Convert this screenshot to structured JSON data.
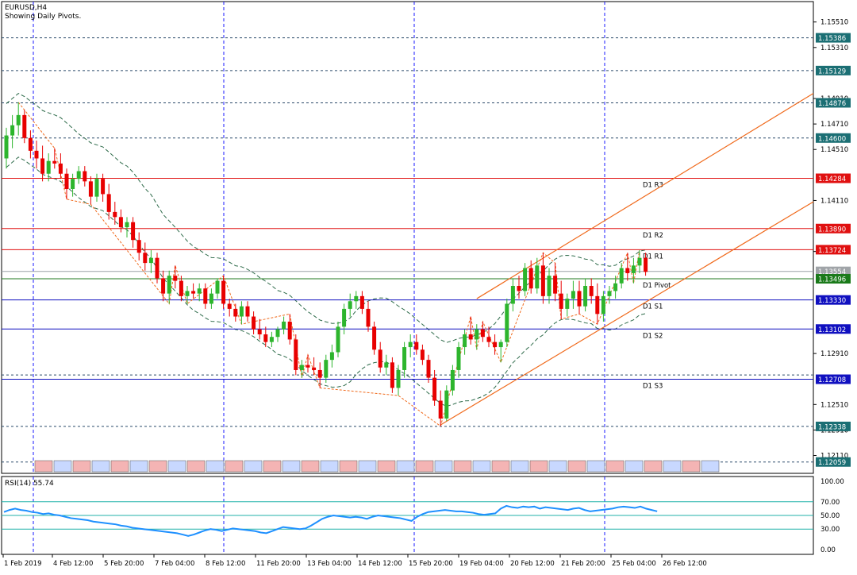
{
  "header": {
    "symbol": "EURUSD,H4",
    "subtitle": "Showing Daily Pivots."
  },
  "colors": {
    "bull": "#2db52d",
    "bear": "#e80000",
    "pivot_resistance": "#e01010",
    "pivot_support": "#1010c0",
    "pivot_center": "#207a20",
    "channel": "#f06a1c",
    "zigzag": "#f06a1c",
    "envelope": "#2e6b4a",
    "rsi_line": "#1e90ff",
    "rsi_levels": "#20b2aa",
    "grid": "#1a1aff",
    "tag_fill": "#a8e0f0"
  },
  "chart_data": [
    {
      "type": "candlestick",
      "panel": "main",
      "symbol": "EURUSD",
      "timeframe": "H4",
      "y_axis_ticks": [
        "1.15510",
        "1.15310",
        "1.14910",
        "1.14710",
        "1.14510",
        "1.14110",
        "1.13710",
        "1.12910",
        "1.12510",
        "1.12310",
        "1.12110"
      ],
      "ylim": [
        1.1197,
        1.1567
      ],
      "x_axis_ticks": [
        "1 Feb 2019",
        "4 Feb 12:00",
        "5 Feb 20:00",
        "7 Feb 04:00",
        "8 Feb 12:00",
        "11 Feb 20:00",
        "13 Feb 04:00",
        "14 Feb 12:00",
        "15 Feb 20:00",
        "19 Feb 04:00",
        "20 Feb 12:00",
        "21 Feb 20:00",
        "25 Feb 04:00",
        "26 Feb 12:00"
      ],
      "price_tags": [
        {
          "value": "1.15386",
          "style": "dotted"
        },
        {
          "value": "1.15129",
          "style": "dotted"
        },
        {
          "value": "1.14876",
          "style": "dotted"
        },
        {
          "value": "1.14600",
          "style": "dotted"
        },
        {
          "value": "1.14284",
          "style": "resistance"
        },
        {
          "value": "1.13890",
          "style": "resistance"
        },
        {
          "value": "1.13724",
          "style": "resistance"
        },
        {
          "value": "1.13554",
          "style": "current"
        },
        {
          "value": "1.13496",
          "style": "pivot"
        },
        {
          "value": "1.13330",
          "style": "support"
        },
        {
          "value": "1.13102",
          "style": "support"
        },
        {
          "value": "1.12708",
          "style": "support"
        },
        {
          "value": "1.12338",
          "style": "dotted"
        },
        {
          "value": "1.12059",
          "style": "dotted"
        }
      ],
      "pivots": [
        {
          "label": "D1 R3",
          "value": 1.14284
        },
        {
          "label": "D1 R2",
          "value": 1.1389
        },
        {
          "label": "D1 R1",
          "value": 1.13724
        },
        {
          "label": "D1 Pivot",
          "value": 1.13496
        },
        {
          "label": "D1 S1",
          "value": 1.1333
        },
        {
          "label": "D1 S2",
          "value": 1.13102
        },
        {
          "label": "D1 S3",
          "value": 1.12708
        }
      ],
      "extra_levels": [
        1.12742
      ],
      "candles": [
        [
          1.1444,
          1.1468,
          1.1436,
          1.1462
        ],
        [
          1.1462,
          1.1478,
          1.1452,
          1.147
        ],
        [
          1.147,
          1.1488,
          1.1462,
          1.1478
        ],
        [
          1.1478,
          1.1482,
          1.1456,
          1.146
        ],
        [
          1.146,
          1.1466,
          1.1444,
          1.145
        ],
        [
          1.145,
          1.1458,
          1.1436,
          1.1444
        ],
        [
          1.1444,
          1.1454,
          1.1426,
          1.1432
        ],
        [
          1.1432,
          1.1448,
          1.1426,
          1.1442
        ],
        [
          1.1442,
          1.1452,
          1.1436,
          1.144
        ],
        [
          1.144,
          1.1448,
          1.1428,
          1.1432
        ],
        [
          1.1432,
          1.1436,
          1.1412,
          1.142
        ],
        [
          1.142,
          1.1432,
          1.1414,
          1.1428
        ],
        [
          1.1428,
          1.1438,
          1.1424,
          1.1434
        ],
        [
          1.1434,
          1.1438,
          1.1422,
          1.1426
        ],
        [
          1.1426,
          1.143,
          1.1408,
          1.1414
        ],
        [
          1.1414,
          1.1432,
          1.141,
          1.1428
        ],
        [
          1.1428,
          1.1432,
          1.141,
          1.1416
        ],
        [
          1.1416,
          1.1424,
          1.1396,
          1.1402
        ],
        [
          1.1402,
          1.141,
          1.1392,
          1.1398
        ],
        [
          1.1398,
          1.1404,
          1.1386,
          1.139
        ],
        [
          1.139,
          1.1398,
          1.1382,
          1.1394
        ],
        [
          1.1394,
          1.1398,
          1.1374,
          1.138
        ],
        [
          1.138,
          1.1386,
          1.1364,
          1.137
        ],
        [
          1.137,
          1.1378,
          1.1356,
          1.1362
        ],
        [
          1.1362,
          1.1372,
          1.1354,
          1.1366
        ],
        [
          1.1366,
          1.137,
          1.1346,
          1.135
        ],
        [
          1.135,
          1.1356,
          1.1332,
          1.1338
        ],
        [
          1.1338,
          1.1356,
          1.133,
          1.1352
        ],
        [
          1.1352,
          1.136,
          1.1342,
          1.1348
        ],
        [
          1.1348,
          1.1352,
          1.1332,
          1.1336
        ],
        [
          1.1336,
          1.1344,
          1.133,
          1.134
        ],
        [
          1.134,
          1.1346,
          1.1334,
          1.1338
        ],
        [
          1.1338,
          1.1346,
          1.1332,
          1.1342
        ],
        [
          1.1342,
          1.1346,
          1.1326,
          1.133
        ],
        [
          1.133,
          1.1342,
          1.1326,
          1.1338
        ],
        [
          1.1338,
          1.135,
          1.1334,
          1.1348
        ],
        [
          1.1348,
          1.1352,
          1.1326,
          1.133
        ],
        [
          1.133,
          1.1334,
          1.132,
          1.1326
        ],
        [
          1.1326,
          1.133,
          1.1316,
          1.132
        ],
        [
          1.132,
          1.1332,
          1.1314,
          1.1328
        ],
        [
          1.1328,
          1.1332,
          1.1316,
          1.132
        ],
        [
          1.132,
          1.1324,
          1.1306,
          1.131
        ],
        [
          1.131,
          1.1318,
          1.1302,
          1.1306
        ],
        [
          1.1306,
          1.1312,
          1.1296,
          1.13
        ],
        [
          1.13,
          1.1308,
          1.1296,
          1.1304
        ],
        [
          1.1304,
          1.1312,
          1.13,
          1.131
        ],
        [
          1.131,
          1.132,
          1.1306,
          1.1316
        ],
        [
          1.1316,
          1.1322,
          1.1298,
          1.1302
        ],
        [
          1.1302,
          1.1306,
          1.1274,
          1.1278
        ],
        [
          1.1278,
          1.1286,
          1.1272,
          1.1282
        ],
        [
          1.1282,
          1.129,
          1.1276,
          1.128
        ],
        [
          1.128,
          1.1288,
          1.1274,
          1.1278
        ],
        [
          1.1278,
          1.1284,
          1.1264,
          1.1272
        ],
        [
          1.1272,
          1.129,
          1.1268,
          1.1286
        ],
        [
          1.1286,
          1.1298,
          1.128,
          1.1292
        ],
        [
          1.1292,
          1.1316,
          1.1288,
          1.1312
        ],
        [
          1.1312,
          1.133,
          1.1306,
          1.1326
        ],
        [
          1.1326,
          1.1338,
          1.132,
          1.1332
        ],
        [
          1.1332,
          1.134,
          1.1326,
          1.1336
        ],
        [
          1.1336,
          1.134,
          1.1322,
          1.1326
        ],
        [
          1.1326,
          1.1332,
          1.1308,
          1.1312
        ],
        [
          1.1312,
          1.1316,
          1.129,
          1.1294
        ],
        [
          1.1294,
          1.13,
          1.1276,
          1.128
        ],
        [
          1.128,
          1.129,
          1.1274,
          1.1284
        ],
        [
          1.1284,
          1.1288,
          1.126,
          1.1264
        ],
        [
          1.1264,
          1.1282,
          1.1258,
          1.1278
        ],
        [
          1.1278,
          1.13,
          1.1272,
          1.1296
        ],
        [
          1.1296,
          1.1306,
          1.1288,
          1.13
        ],
        [
          1.13,
          1.1306,
          1.129,
          1.1294
        ],
        [
          1.1294,
          1.1298,
          1.1282,
          1.1286
        ],
        [
          1.1286,
          1.129,
          1.1268,
          1.1272
        ],
        [
          1.1272,
          1.1278,
          1.125,
          1.1254
        ],
        [
          1.1254,
          1.1262,
          1.1234,
          1.124
        ],
        [
          1.124,
          1.1266,
          1.1238,
          1.1262
        ],
        [
          1.1262,
          1.1282,
          1.1258,
          1.1278
        ],
        [
          1.1278,
          1.13,
          1.1272,
          1.1296
        ],
        [
          1.1296,
          1.131,
          1.129,
          1.1306
        ],
        [
          1.1306,
          1.132,
          1.1298,
          1.1302
        ],
        [
          1.1302,
          1.1314,
          1.1294,
          1.131
        ],
        [
          1.131,
          1.1316,
          1.13,
          1.1304
        ],
        [
          1.1304,
          1.1312,
          1.1296,
          1.13
        ],
        [
          1.13,
          1.1306,
          1.129,
          1.1296
        ],
        [
          1.1296,
          1.1302,
          1.1284,
          1.13
        ],
        [
          1.13,
          1.1334,
          1.1296,
          1.133
        ],
        [
          1.133,
          1.135,
          1.1324,
          1.1344
        ],
        [
          1.1344,
          1.1352,
          1.1334,
          1.134
        ],
        [
          1.134,
          1.1362,
          1.1336,
          1.1358
        ],
        [
          1.1358,
          1.1364,
          1.1338,
          1.1342
        ],
        [
          1.1342,
          1.1366,
          1.1338,
          1.136
        ],
        [
          1.136,
          1.137,
          1.133,
          1.1336
        ],
        [
          1.1336,
          1.1358,
          1.133,
          1.1352
        ],
        [
          1.1352,
          1.1362,
          1.1332,
          1.1338
        ],
        [
          1.1338,
          1.1348,
          1.1318,
          1.1326
        ],
        [
          1.1326,
          1.1338,
          1.132,
          1.1334
        ],
        [
          1.1334,
          1.1348,
          1.1326,
          1.134
        ],
        [
          1.134,
          1.1348,
          1.1322,
          1.1328
        ],
        [
          1.1328,
          1.135,
          1.1324,
          1.1344
        ],
        [
          1.1344,
          1.135,
          1.133,
          1.1336
        ],
        [
          1.1336,
          1.1346,
          1.1314,
          1.1322
        ],
        [
          1.1322,
          1.134,
          1.1316,
          1.1336
        ],
        [
          1.1336,
          1.1344,
          1.133,
          1.134
        ],
        [
          1.134,
          1.1352,
          1.1334,
          1.1346
        ],
        [
          1.1346,
          1.1362,
          1.1342,
          1.1358
        ],
        [
          1.1358,
          1.137,
          1.1348,
          1.1354
        ],
        [
          1.1354,
          1.1366,
          1.1346,
          1.136
        ],
        [
          1.136,
          1.1372,
          1.1354,
          1.1366
        ],
        [
          1.1366,
          1.137,
          1.1352,
          1.1355
        ]
      ]
    },
    {
      "type": "line",
      "panel": "rsi",
      "title": "RSI(14) 55.74",
      "ylim": [
        0,
        100
      ],
      "y_axis_ticks": [
        "100.00",
        "70.00",
        "50.00",
        "30.00",
        "0.00"
      ],
      "levels": [
        70,
        50,
        30
      ],
      "series": [
        {
          "values": [
            55,
            58,
            60,
            58,
            57,
            55,
            54,
            52,
            53,
            51,
            50,
            48,
            46,
            45,
            44,
            43,
            41,
            40,
            39,
            38,
            37,
            35,
            34,
            32,
            31,
            30,
            29,
            28,
            27,
            26,
            25,
            24,
            22,
            20,
            22,
            25,
            28,
            30,
            29,
            27,
            29,
            31,
            30,
            29,
            28,
            27,
            25,
            24,
            27,
            30,
            33,
            32,
            31,
            30,
            31,
            35,
            40,
            45,
            48,
            50,
            49,
            48,
            47,
            48,
            47,
            45,
            48,
            50,
            49,
            48,
            47,
            46,
            44,
            42,
            48,
            52,
            55,
            56,
            57,
            58,
            57,
            56,
            56,
            55,
            54,
            52,
            51,
            52,
            53,
            60,
            64,
            62,
            61,
            63,
            62,
            63,
            60,
            62,
            61,
            60,
            59,
            58,
            60,
            61,
            58,
            56,
            57,
            58,
            59,
            60,
            62,
            63,
            62,
            61,
            63,
            60,
            58,
            56
          ]
        }
      ]
    }
  ]
}
